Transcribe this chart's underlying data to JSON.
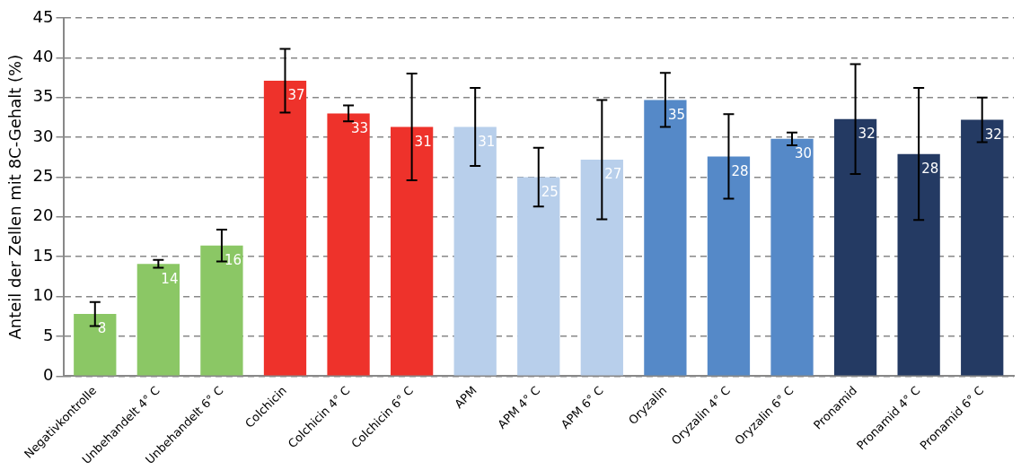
{
  "chart_data": {
    "type": "bar",
    "ylabel": "Anteil der Zellen mit 8C-Gehalt (%)",
    "categories": [
      "Negativkontrolle",
      "Unbehandelt 4° C",
      "Unbehandelt 6° C",
      "Colchicin",
      "Colchicin 4° C",
      "Colchicin 6° C",
      "APM",
      "APM 4° C",
      "APM 6° C",
      "Oryzalin",
      "Oryzalin 4° C",
      "Oryzalin 6° C",
      "Pronamid",
      "Pronamid 4° C",
      "Pronamid 6° C"
    ],
    "values": [
      7.8,
      14.1,
      16.4,
      37.1,
      33.0,
      31.3,
      31.3,
      25.0,
      27.2,
      34.7,
      27.6,
      29.8,
      32.3,
      27.9,
      32.2
    ],
    "errors": [
      1.5,
      0.5,
      2.0,
      4.0,
      1.0,
      6.7,
      4.9,
      3.7,
      7.5,
      3.4,
      5.3,
      0.8,
      6.9,
      8.3,
      2.8
    ],
    "value_labels": [
      "8",
      "14",
      "16",
      "37",
      "33",
      "31",
      "31",
      "25",
      "27",
      "35",
      "28",
      "30",
      "32",
      "28",
      "32"
    ],
    "colors": [
      "#8bc765",
      "#8bc765",
      "#8bc765",
      "#ee322b",
      "#ee322b",
      "#ee322b",
      "#b8cfeb",
      "#b8cfeb",
      "#b8cfeb",
      "#5589c8",
      "#5589c8",
      "#5589c8",
      "#243a63",
      "#243a63",
      "#243a63"
    ],
    "ylim": [
      0,
      45
    ],
    "yticks": [
      0,
      5,
      10,
      15,
      20,
      25,
      30,
      35,
      40,
      45
    ],
    "grid": "y",
    "legend": false
  }
}
